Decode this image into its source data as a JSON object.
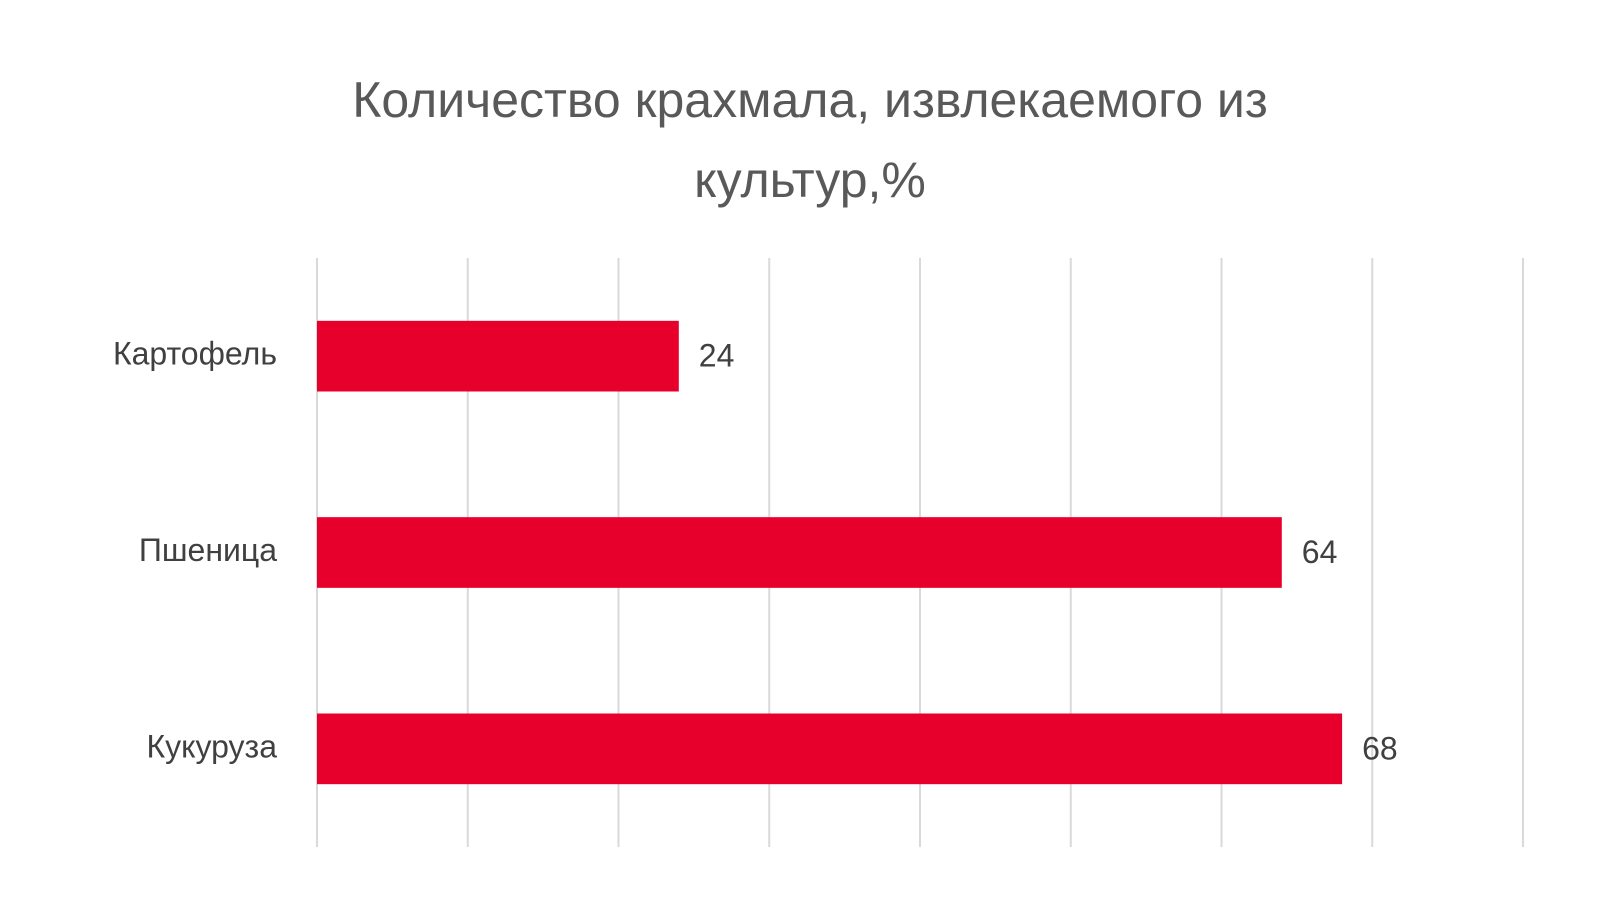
{
  "chart_data": {
    "type": "bar",
    "orientation": "horizontal",
    "title": "Количество крахмала, извлекаемого из культур,%",
    "categories": [
      "Картофель",
      "Пшеница",
      "Кукуруза"
    ],
    "values": [
      24,
      64,
      68
    ],
    "color": "#e8002d",
    "xlim": [
      0,
      80
    ],
    "xticks": [
      0,
      10,
      20,
      30,
      40,
      50,
      60,
      70,
      80
    ],
    "grid": true
  }
}
